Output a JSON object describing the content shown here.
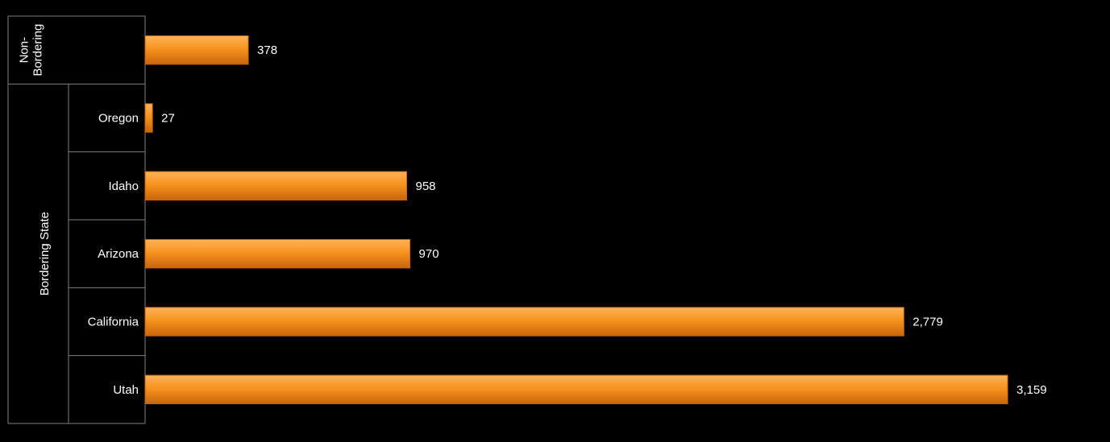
{
  "chart_data": {
    "type": "bar",
    "orientation": "horizontal",
    "grid": false,
    "legend": "none",
    "colors": {
      "background": "#000000",
      "bar": "#f7931e",
      "bar_light": "#fdb35c",
      "bar_dark": "#c9650a",
      "axis": "#7f7f7f",
      "text": "#ffffff"
    },
    "groups": [
      {
        "label": "Non-\nBordering",
        "categories": [
          ""
        ]
      },
      {
        "label": "Bordering State",
        "categories": [
          "Oregon",
          "Idaho",
          "Arizona",
          "California",
          "Utah"
        ]
      }
    ],
    "categories": [
      "",
      "Oregon",
      "Idaho",
      "Arizona",
      "California",
      "Utah"
    ],
    "values": [
      378,
      27,
      958,
      970,
      2779,
      3159
    ],
    "value_labels": [
      "378",
      "27",
      "958",
      "970",
      "2,779",
      "3,159"
    ],
    "xlim": [
      0,
      3159
    ]
  }
}
